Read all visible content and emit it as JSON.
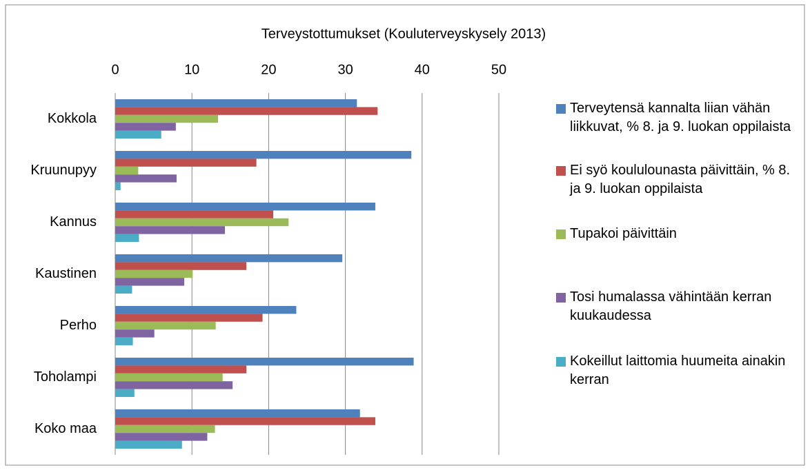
{
  "chart_data": {
    "type": "bar",
    "orientation": "horizontal",
    "title": "Terveystottumukset (Kouluterveyskysely 2013)",
    "categories": [
      "Kokkola",
      "Kruunupyy",
      "Kannus",
      "Kaustinen",
      "Perho",
      "Toholampi",
      "Koko maa"
    ],
    "series": [
      {
        "name": "Terveytensä kannalta liian vähän liikkuvat, % 8. ja 9. luokan oppilaista",
        "color": "#4f81bd",
        "values": [
          31.5,
          38.6,
          33.9,
          29.6,
          23.6,
          38.9,
          31.9
        ]
      },
      {
        "name": "Ei syö koululounasta päivittäin, % 8. ja 9. luokan oppilaista",
        "color": "#c0504d",
        "values": [
          34.2,
          18.4,
          20.6,
          17.1,
          19.2,
          17.1,
          33.9
        ]
      },
      {
        "name": "Tupakoi päivittäin",
        "color": "#9bbb59",
        "values": [
          13.4,
          3.0,
          22.6,
          10.1,
          13.1,
          14.0,
          13.0
        ]
      },
      {
        "name": "Tosi humalassa vähintään kerran kuukaudessa",
        "color": "#8064a2",
        "values": [
          7.9,
          8.0,
          14.3,
          9.0,
          5.1,
          15.3,
          12.0
        ]
      },
      {
        "name": "Kokeillut laittomia huumeita ainakin kerran",
        "color": "#4bacc6",
        "values": [
          6.0,
          0.7,
          3.1,
          2.2,
          2.3,
          2.5,
          8.7
        ]
      }
    ],
    "xlim": [
      0,
      50
    ],
    "xticks": [
      0,
      10,
      20,
      30,
      40,
      50
    ],
    "grid": true,
    "legend": "right"
  }
}
